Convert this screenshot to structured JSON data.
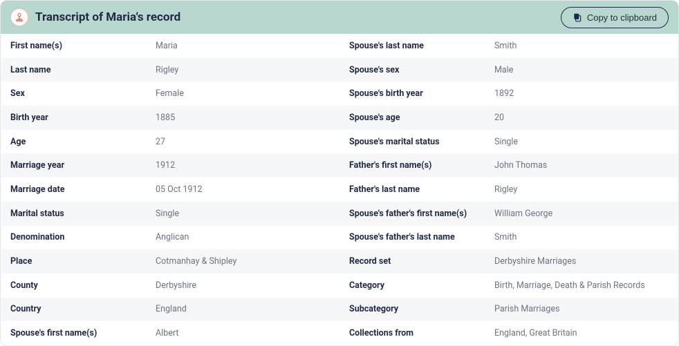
{
  "header": {
    "title": "Transcript of Maria's record",
    "copy_label": "Copy to clipboard"
  },
  "colors": {
    "header_bg": "#b8d8cf",
    "row_odd": "#ffffff",
    "row_even": "#f6f7f8",
    "label_color": "#1f2a44",
    "value_color": "#6b7385",
    "icon_stroke": "#e57362"
  },
  "left": [
    {
      "label": "First name(s)",
      "value": "Maria"
    },
    {
      "label": "Last name",
      "value": "Rigley"
    },
    {
      "label": "Sex",
      "value": "Female"
    },
    {
      "label": "Birth year",
      "value": "1885"
    },
    {
      "label": "Age",
      "value": "27"
    },
    {
      "label": "Marriage year",
      "value": "1912"
    },
    {
      "label": "Marriage date",
      "value": "05 Oct 1912"
    },
    {
      "label": "Marital status",
      "value": "Single"
    },
    {
      "label": "Denomination",
      "value": "Anglican"
    },
    {
      "label": "Place",
      "value": "Cotmanhay & Shipley"
    },
    {
      "label": "County",
      "value": "Derbyshire"
    },
    {
      "label": "Country",
      "value": "England"
    },
    {
      "label": "Spouse's first name(s)",
      "value": "Albert"
    }
  ],
  "right": [
    {
      "label": "Spouse's last name",
      "value": "Smith"
    },
    {
      "label": "Spouse's sex",
      "value": "Male"
    },
    {
      "label": "Spouse's birth year",
      "value": "1892"
    },
    {
      "label": "Spouse's age",
      "value": "20"
    },
    {
      "label": "Spouse's marital status",
      "value": "Single"
    },
    {
      "label": "Father's first name(s)",
      "value": "John Thomas"
    },
    {
      "label": "Father's last name",
      "value": "Rigley"
    },
    {
      "label": "Spouse's father's first name(s)",
      "value": "William George"
    },
    {
      "label": "Spouse's father's last name",
      "value": "Smith"
    },
    {
      "label": "Record set",
      "value": "Derbyshire Marriages"
    },
    {
      "label": "Category",
      "value": "Birth, Marriage, Death & Parish Records"
    },
    {
      "label": "Subcategory",
      "value": "Parish Marriages"
    },
    {
      "label": "Collections from",
      "value": "England, Great Britain"
    }
  ]
}
